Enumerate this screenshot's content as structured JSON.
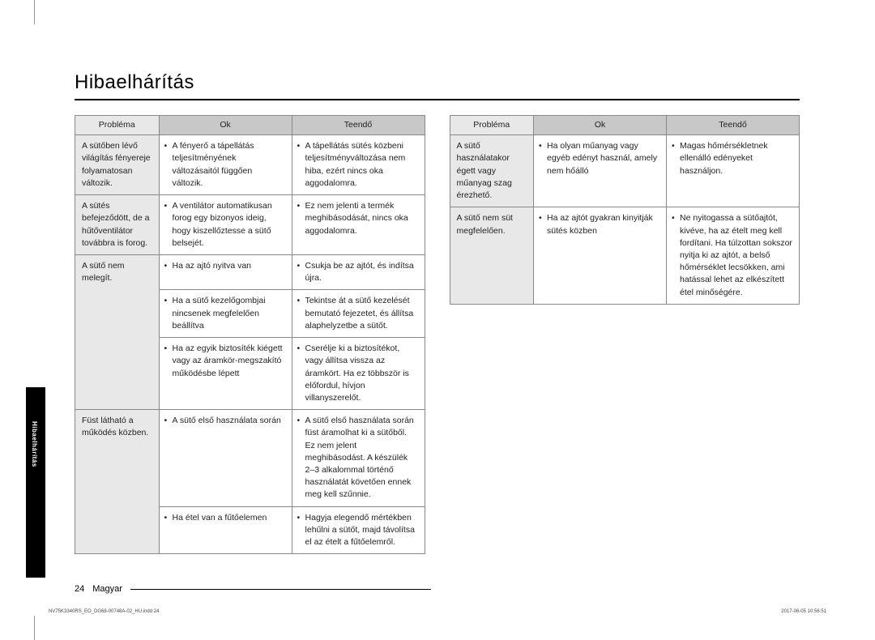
{
  "page_title": "Hibaelhárítás",
  "side_tab": "Hibaelhárítás",
  "footer_page": "24",
  "footer_lang": "Magyar",
  "headers": {
    "problema": "Probléma",
    "ok": "Ok",
    "teendo": "Teendő"
  },
  "tiny_left": "NV75K3340RS_EO_DG68-00748A-02_HU.indd   24",
  "tiny_right": "2017-06-05    10:56:51",
  "table_left": [
    {
      "problem": "A sütőben lévő világítás fényereje folyamatosan változik.",
      "rows": [
        {
          "ok": "A fényerő a tápellátás teljesítményének változásaitól függően változik.",
          "teendo": "A tápellátás sütés közbeni teljesítményváltozása nem hiba, ezért nincs oka aggodalomra."
        }
      ]
    },
    {
      "problem": "A sütés befejeződött, de a hűtőventilátor továbbra is forog.",
      "rows": [
        {
          "ok": "A ventilátor automatikusan forog egy bizonyos ideig, hogy kiszellőztesse a sütő belsejét.",
          "teendo": "Ez nem jelenti a termék meghibásodását, nincs oka aggodalomra."
        }
      ]
    },
    {
      "problem": "A sütő nem melegít.",
      "rows": [
        {
          "ok": "Ha az ajtó nyitva van",
          "teendo": "Csukja be az ajtót, és indítsa újra."
        },
        {
          "ok": "Ha a sütő kezelőgombjai nincsenek megfelelően beállítva",
          "teendo": "Tekintse át a sütő kezelését bemutató fejezetet, és állítsa alaphelyzetbe a sütőt."
        },
        {
          "ok": "Ha az egyik biztosíték kiégett vagy az áramkör-megszakító működésbe lépett",
          "teendo": "Cserélje ki a biztosítékot, vagy állítsa vissza az áramkört. Ha ez többször is előfordul, hívjon villanyszerelőt."
        }
      ]
    },
    {
      "problem": "Füst látható a működés közben.",
      "rows": [
        {
          "ok": "A sütő első használata során",
          "teendo": "A sütő első használata során füst áramolhat ki a sütőből. Ez nem jelent meghibásodást. A készülék 2–3 alkalommal történő használatát követően ennek meg kell szűnnie."
        },
        {
          "ok": "Ha étel van a fűtőelemen",
          "teendo": "Hagyja elegendő mértékben lehűlni a sütőt, majd távolítsa el az ételt a fűtőelemről."
        }
      ]
    }
  ],
  "table_right": [
    {
      "problem": "A sütő használatakor égett vagy műanyag szag érezhető.",
      "rows": [
        {
          "ok": "Ha olyan műanyag vagy egyéb edényt használ, amely nem hőálló",
          "teendo": "Magas hőmérsékletnek ellenálló edényeket használjon."
        }
      ]
    },
    {
      "problem": "A sütő nem süt megfelelően.",
      "rows": [
        {
          "ok": "Ha az ajtót gyakran kinyitják sütés közben",
          "teendo": "Ne nyitogassa a sütőajtót, kivéve, ha az ételt meg kell fordítani. Ha túlzottan sokszor nyitja ki az ajtót, a belső hőmérséklet lecsökken, ami hatással lehet az elkészített étel minőségére."
        }
      ]
    }
  ],
  "styling": {
    "title_fontsize": 24,
    "table_fontsize": 10.5,
    "header_bg": "#c8c8c8",
    "problem_bg": "#e8e8e8",
    "border_color": "#888888",
    "text_color": "#222222",
    "side_tab_bg": "#000000",
    "side_tab_color": "#ffffff",
    "page_bg": "#ffffff"
  }
}
